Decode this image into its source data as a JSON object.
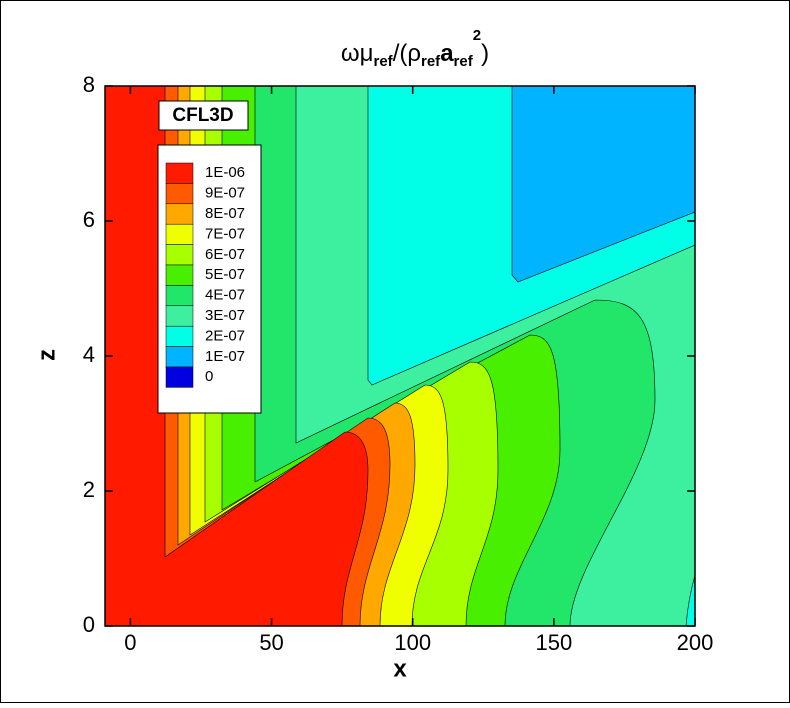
{
  "chart_data": {
    "type": "contour",
    "title_parts": [
      "ωμ",
      "ref",
      "/(ρ",
      "ref",
      "a",
      "ref",
      "2",
      ")"
    ],
    "annotation": "CFL3D",
    "x_label": "x",
    "y_label": "z",
    "xlim": [
      -9,
      200
    ],
    "ylim": [
      0,
      8
    ],
    "xticks": [
      0,
      50,
      100,
      150,
      200
    ],
    "yticks": [
      0,
      2,
      4,
      6,
      8
    ],
    "levels": [
      {
        "value": 1e-06,
        "label": "1E-06"
      },
      {
        "value": 9e-07,
        "label": "9E-07"
      },
      {
        "value": 8e-07,
        "label": "8E-07"
      },
      {
        "value": 7e-07,
        "label": "7E-07"
      },
      {
        "value": 6e-07,
        "label": "6E-07"
      },
      {
        "value": 5e-07,
        "label": "5E-07"
      },
      {
        "value": 4e-07,
        "label": "4E-07"
      },
      {
        "value": 3e-07,
        "label": "3E-07"
      },
      {
        "value": 2e-07,
        "label": "2E-07"
      },
      {
        "value": 1e-07,
        "label": "1E-07"
      },
      {
        "value": 0,
        "label": "0"
      }
    ],
    "colors": [
      "#ff1a00",
      "#ff5a00",
      "#ffa800",
      "#f0ff00",
      "#a8ff00",
      "#48f000",
      "#22e66a",
      "#3cf0a0",
      "#00ffe6",
      "#00b4ff",
      "#0000e0"
    ]
  }
}
